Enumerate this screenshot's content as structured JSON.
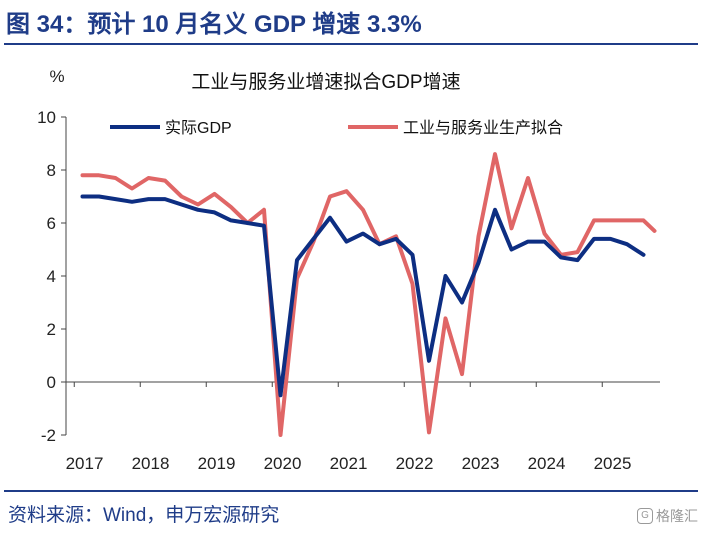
{
  "header": {
    "title": "图 34：预计 10 月名义 GDP 增速 3.3%"
  },
  "footer": {
    "source": "资料来源：Wind，申万宏源研究",
    "watermark": "格隆汇"
  },
  "colors": {
    "accent": "#1f3c88",
    "series_gdp": "#0d2e82",
    "series_fit": "#e06666"
  },
  "chart_data": {
    "type": "line",
    "title": "工业与服务业增速拟合GDP增速",
    "ylabel": "%",
    "ylim": [
      -2,
      10
    ],
    "yticks": [
      -2,
      0,
      2,
      4,
      6,
      8,
      10
    ],
    "xticks": [
      "2017",
      "2018",
      "2019",
      "2020",
      "2021",
      "2022",
      "2023",
      "2024",
      "2025"
    ],
    "xlim": [
      "2016Q4",
      "2025Q4"
    ],
    "legend_position": "top",
    "series": [
      {
        "name": "实际GDP",
        "x": [
          "2017Q1",
          "2017Q2",
          "2017Q3",
          "2017Q4",
          "2018Q1",
          "2018Q2",
          "2018Q3",
          "2018Q4",
          "2019Q1",
          "2019Q2",
          "2019Q3",
          "2019Q4",
          "2020Q1",
          "2020Q2",
          "2020Q3",
          "2020Q4",
          "2021Q1",
          "2021Q2",
          "2021Q3",
          "2021Q4",
          "2022Q1",
          "2022Q2",
          "2022Q3",
          "2022Q4",
          "2023Q1",
          "2023Q2",
          "2023Q3",
          "2023Q4",
          "2024Q1",
          "2024Q2",
          "2024Q3",
          "2024Q4",
          "2025Q1",
          "2025Q2",
          "2025Q3"
        ],
        "values": [
          7.0,
          7.0,
          6.9,
          6.8,
          6.9,
          6.9,
          6.7,
          6.5,
          6.4,
          6.1,
          6.0,
          5.9,
          -0.5,
          4.6,
          5.4,
          6.2,
          5.3,
          5.6,
          5.2,
          5.4,
          4.8,
          0.8,
          4.0,
          3.0,
          4.5,
          6.5,
          5.0,
          5.3,
          5.3,
          4.7,
          4.6,
          5.4,
          5.4,
          5.2,
          4.8
        ]
      },
      {
        "name": "工业与服务业生产拟合",
        "x": [
          "2017Q1",
          "2017Q2",
          "2017Q3",
          "2017Q4",
          "2018Q1",
          "2018Q2",
          "2018Q3",
          "2018Q4",
          "2019Q1",
          "2019Q2",
          "2019Q3",
          "2019Q4",
          "2020Q1",
          "2020Q2",
          "2020Q3",
          "2020Q4",
          "2021Q1",
          "2021Q2",
          "2021Q3",
          "2021Q4",
          "2022Q1",
          "2022Q2",
          "2022Q3",
          "2022Q4",
          "2023Q1",
          "2023Q2",
          "2023Q3",
          "2023Q4",
          "2024Q1",
          "2024Q2",
          "2024Q3",
          "2024Q4",
          "2025Q1",
          "2025Q2",
          "2025Q3",
          "2025M10"
        ],
        "values": [
          7.8,
          7.8,
          7.7,
          7.3,
          7.7,
          7.6,
          7.0,
          6.7,
          7.1,
          6.6,
          6.0,
          6.5,
          -2.0,
          3.9,
          5.3,
          7.0,
          7.2,
          6.5,
          5.2,
          5.5,
          3.7,
          -1.9,
          2.4,
          0.3,
          5.5,
          8.6,
          5.8,
          7.7,
          5.6,
          4.8,
          4.9,
          6.1,
          6.1,
          6.1,
          6.1,
          5.7
        ]
      }
    ]
  }
}
